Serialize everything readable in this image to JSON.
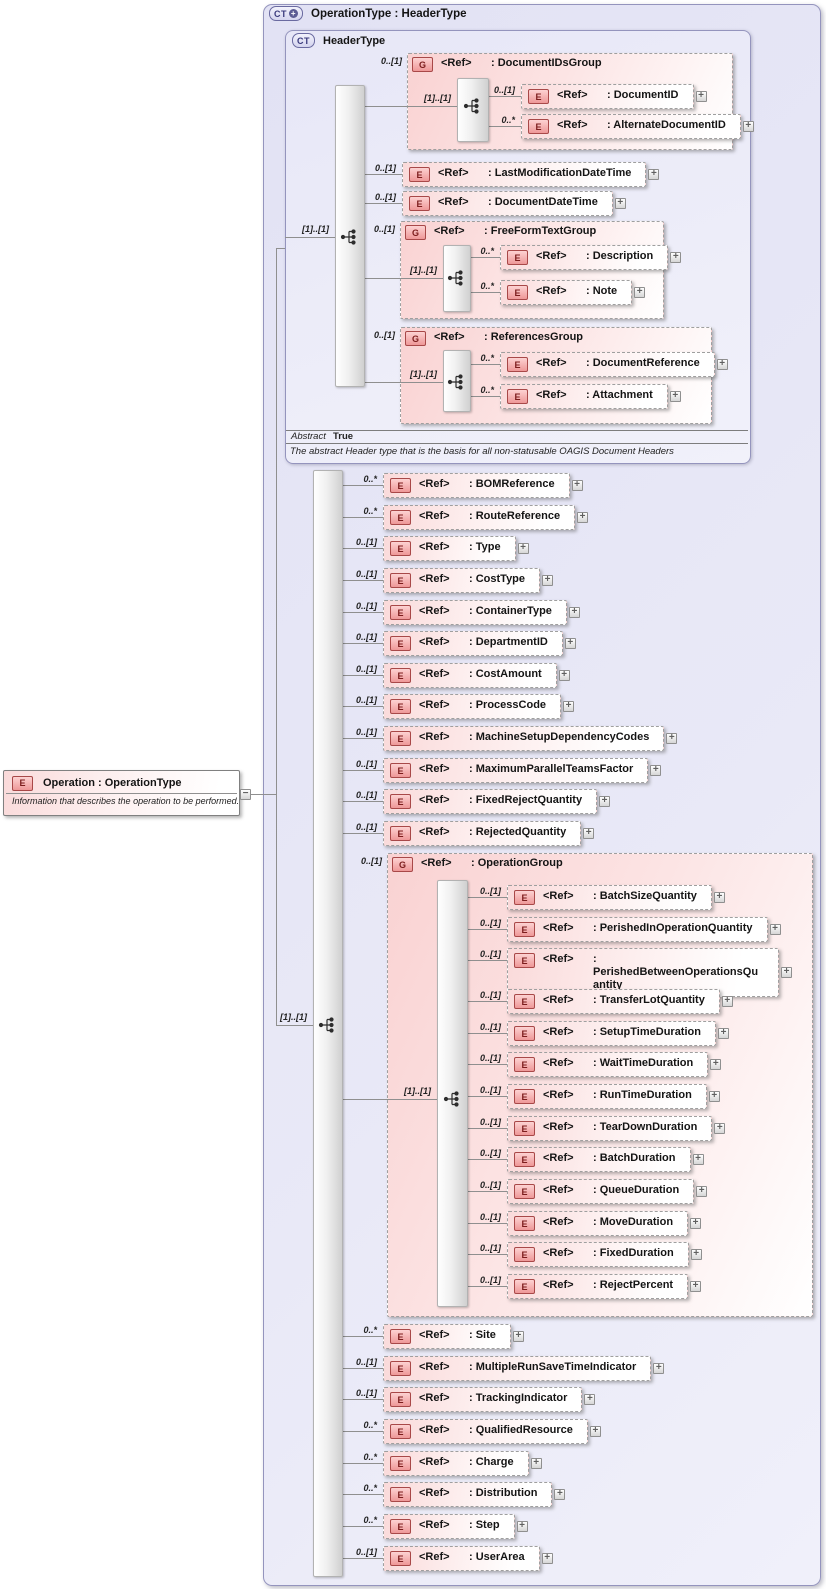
{
  "diagram": {
    "glyphs": {
      "expand": "+",
      "collapse": "−",
      "ref_label": "<Ref>",
      "badge_plus": "+"
    },
    "palette": {
      "lavender": "#e6e6f7",
      "pink": "#fadada",
      "line_gray": "#8f8f8f",
      "badge_red": "#a84848"
    },
    "root_element": {
      "badge": "E",
      "title": "Operation : OperationType",
      "description": "Information that describes the operation to be performed."
    },
    "outer_type": {
      "badge": "CT",
      "title": "OperationType : HeaderType"
    },
    "base_type": {
      "badge": "CT",
      "title": "HeaderType",
      "sequence_cardinality": "[1]..[1]",
      "abstract_label": "Abstract",
      "abstract_value": "True",
      "description": "The abstract Header type that is the basis for all non-statusable OAGIS Document Headers",
      "children": [
        {
          "kind": "group",
          "badge": "G",
          "cardinality": "0..[1]",
          "name": ": DocumentIDsGroup",
          "sequence_cardinality": "[1]..[1]",
          "children": [
            {
              "kind": "element",
              "badge": "E",
              "cardinality": "0..[1]",
              "name": ": DocumentID"
            },
            {
              "kind": "element",
              "badge": "E",
              "cardinality": "0..*",
              "name": ": AlternateDocumentID"
            }
          ]
        },
        {
          "kind": "element",
          "badge": "E",
          "cardinality": "0..[1]",
          "name": ": LastModificationDateTime"
        },
        {
          "kind": "element",
          "badge": "E",
          "cardinality": "0..[1]",
          "name": ": DocumentDateTime"
        },
        {
          "kind": "group",
          "badge": "G",
          "cardinality": "0..[1]",
          "name": ": FreeFormTextGroup",
          "sequence_cardinality": "[1]..[1]",
          "children": [
            {
              "kind": "element",
              "badge": "E",
              "cardinality": "0..*",
              "name": ": Description"
            },
            {
              "kind": "element",
              "badge": "E",
              "cardinality": "0..*",
              "name": ": Note"
            }
          ]
        },
        {
          "kind": "group",
          "badge": "G",
          "cardinality": "0..[1]",
          "name": ": ReferencesGroup",
          "sequence_cardinality": "[1]..[1]",
          "children": [
            {
              "kind": "element",
              "badge": "E",
              "cardinality": "0..*",
              "name": ": DocumentReference"
            },
            {
              "kind": "element",
              "badge": "E",
              "cardinality": "0..*",
              "name": ": Attachment"
            }
          ]
        }
      ]
    },
    "extension": {
      "sequence_cardinality": "[1]..[1]",
      "children": [
        {
          "kind": "element",
          "badge": "E",
          "cardinality": "0..*",
          "name": ": BOMReference"
        },
        {
          "kind": "element",
          "badge": "E",
          "cardinality": "0..*",
          "name": ": RouteReference"
        },
        {
          "kind": "element",
          "badge": "E",
          "cardinality": "0..[1]",
          "name": ": Type"
        },
        {
          "kind": "element",
          "badge": "E",
          "cardinality": "0..[1]",
          "name": ": CostType"
        },
        {
          "kind": "element",
          "badge": "E",
          "cardinality": "0..[1]",
          "name": ": ContainerType"
        },
        {
          "kind": "element",
          "badge": "E",
          "cardinality": "0..[1]",
          "name": ": DepartmentID"
        },
        {
          "kind": "element",
          "badge": "E",
          "cardinality": "0..[1]",
          "name": ": CostAmount"
        },
        {
          "kind": "element",
          "badge": "E",
          "cardinality": "0..[1]",
          "name": ": ProcessCode"
        },
        {
          "kind": "element",
          "badge": "E",
          "cardinality": "0..[1]",
          "name": ": MachineSetupDependencyCodes"
        },
        {
          "kind": "element",
          "badge": "E",
          "cardinality": "0..[1]",
          "name": ": MaximumParallelTeamsFactor"
        },
        {
          "kind": "element",
          "badge": "E",
          "cardinality": "0..[1]",
          "name": ": FixedRejectQuantity"
        },
        {
          "kind": "element",
          "badge": "E",
          "cardinality": "0..[1]",
          "name": ": RejectedQuantity"
        },
        {
          "kind": "group",
          "badge": "G",
          "cardinality": "0..[1]",
          "name": ": OperationGroup",
          "sequence_cardinality": "[1]..[1]",
          "children": [
            {
              "kind": "element",
              "badge": "E",
              "cardinality": "0..[1]",
              "name": ": BatchSizeQuantity"
            },
            {
              "kind": "element",
              "badge": "E",
              "cardinality": "0..[1]",
              "name": ": PerishedInOperationQuantity"
            },
            {
              "kind": "element",
              "badge": "E",
              "cardinality": "0..[1]",
              "name": ": PerishedBetweenOperationsQuantity"
            },
            {
              "kind": "element",
              "badge": "E",
              "cardinality": "0..[1]",
              "name": ": TransferLotQuantity"
            },
            {
              "kind": "element",
              "badge": "E",
              "cardinality": "0..[1]",
              "name": ": SetupTimeDuration"
            },
            {
              "kind": "element",
              "badge": "E",
              "cardinality": "0..[1]",
              "name": ": WaitTimeDuration"
            },
            {
              "kind": "element",
              "badge": "E",
              "cardinality": "0..[1]",
              "name": ": RunTimeDuration"
            },
            {
              "kind": "element",
              "badge": "E",
              "cardinality": "0..[1]",
              "name": ": TearDownDuration"
            },
            {
              "kind": "element",
              "badge": "E",
              "cardinality": "0..[1]",
              "name": ": BatchDuration"
            },
            {
              "kind": "element",
              "badge": "E",
              "cardinality": "0..[1]",
              "name": ": QueueDuration"
            },
            {
              "kind": "element",
              "badge": "E",
              "cardinality": "0..[1]",
              "name": ": MoveDuration"
            },
            {
              "kind": "element",
              "badge": "E",
              "cardinality": "0..[1]",
              "name": ": FixedDuration"
            },
            {
              "kind": "element",
              "badge": "E",
              "cardinality": "0..[1]",
              "name": ": RejectPercent"
            }
          ]
        },
        {
          "kind": "element",
          "badge": "E",
          "cardinality": "0..*",
          "name": ": Site"
        },
        {
          "kind": "element",
          "badge": "E",
          "cardinality": "0..[1]",
          "name": ": MultipleRunSaveTimeIndicator"
        },
        {
          "kind": "element",
          "badge": "E",
          "cardinality": "0..[1]",
          "name": ": TrackingIndicator"
        },
        {
          "kind": "element",
          "badge": "E",
          "cardinality": "0..*",
          "name": ": QualifiedResource"
        },
        {
          "kind": "element",
          "badge": "E",
          "cardinality": "0..*",
          "name": ": Charge"
        },
        {
          "kind": "element",
          "badge": "E",
          "cardinality": "0..*",
          "name": ": Distribution"
        },
        {
          "kind": "element",
          "badge": "E",
          "cardinality": "0..*",
          "name": ": Step"
        },
        {
          "kind": "element",
          "badge": "E",
          "cardinality": "0..[1]",
          "name": ": UserArea"
        }
      ]
    }
  }
}
